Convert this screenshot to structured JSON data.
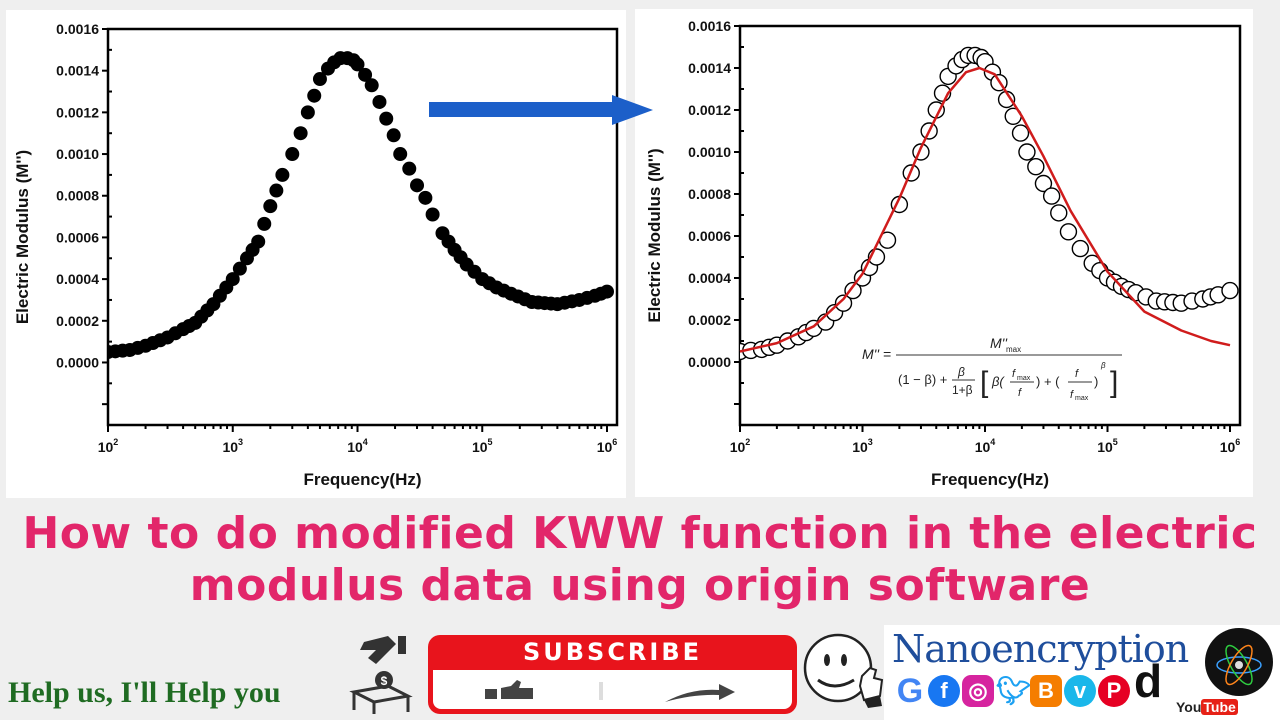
{
  "title": {
    "line1": "How to do modified KWW function in the electric",
    "line2": "modulus data using origin software"
  },
  "footer": {
    "help_text": "Help us, I'll Help you",
    "subscribe_label": "SUBSCRIBE",
    "brand_name": "Nanoencryption",
    "youtube_you": "You",
    "youtube_tube": "Tube",
    "social_icons": [
      "google-icon",
      "facebook-icon",
      "instagram-icon",
      "twitter-icon",
      "blogger-icon",
      "vimeo-icon",
      "pinterest-icon",
      "dailymotion-icon"
    ]
  },
  "colors": {
    "title": "#e2266a",
    "help_text": "#1f6b22",
    "arrow": "#1c5fc9",
    "fit_line": "#d01c1c",
    "subscribe_red": "#e8141c",
    "brand_blue": "#1f4e9c"
  },
  "formula": {
    "text": "M'' = M''max / ((1-β) + β/(1+β) [ β (fmax/f) + (f/fmax)^β ])"
  },
  "chart_data": [
    {
      "type": "scatter",
      "title": "",
      "xlabel": "Frequency(Hz)",
      "ylabel": "Electric Modulus (M'')",
      "xscale": "log",
      "xlim": [
        100,
        1200000
      ],
      "ylim": [
        -0.0003,
        0.0016
      ],
      "x_ticks": [
        "10^2",
        "10^3",
        "10^4",
        "10^5",
        "10^6"
      ],
      "y_ticks": [
        "0.0000",
        "0.0002",
        "0.0004",
        "0.0006",
        "0.0008",
        "0.0010",
        "0.0012",
        "0.0014",
        "0.0016"
      ],
      "grid": false,
      "legend": null,
      "series": [
        {
          "name": "M'' data (filled circles)",
          "marker": "filled-circle",
          "x": [
            100,
            150,
            200,
            300,
            400,
            500,
            700,
            1000,
            1300,
            1600,
            2000,
            2500,
            3000,
            3500,
            4000,
            4500,
            5000,
            5800,
            6500,
            7300,
            8300,
            9300,
            10000,
            11500,
            13000,
            15000,
            17000,
            19500,
            22000,
            26000,
            30000,
            35000,
            40000,
            48000,
            60000,
            75000,
            100000,
            130000,
            170000,
            250000,
            400000,
            600000,
            800000,
            1000000
          ],
          "y": [
            5e-05,
            6e-05,
            8e-05,
            0.00012,
            0.00016,
            0.00019,
            0.00028,
            0.0004,
            0.0005,
            0.00058,
            0.00075,
            0.0009,
            0.001,
            0.0011,
            0.0012,
            0.00128,
            0.00136,
            0.00141,
            0.00144,
            0.00146,
            0.00146,
            0.00145,
            0.00143,
            0.00138,
            0.00133,
            0.00125,
            0.00117,
            0.00109,
            0.001,
            0.00093,
            0.00085,
            0.00079,
            0.00071,
            0.00062,
            0.00054,
            0.00047,
            0.0004,
            0.00036,
            0.00033,
            0.00029,
            0.00028,
            0.0003,
            0.00032,
            0.00034
          ]
        }
      ]
    },
    {
      "type": "scatter",
      "title": "",
      "xlabel": "Frequency(Hz)",
      "ylabel": "Electric Modulus (M'')",
      "xscale": "log",
      "xlim": [
        100,
        1200000
      ],
      "ylim": [
        -0.0003,
        0.0016
      ],
      "x_ticks": [
        "10^2",
        "10^3",
        "10^4",
        "10^5",
        "10^6"
      ],
      "y_ticks": [
        "0.0000",
        "0.0002",
        "0.0004",
        "0.0006",
        "0.0008",
        "0.0010",
        "0.0012",
        "0.0014",
        "0.0016"
      ],
      "grid": false,
      "annotation": "M'' = M''max / ((1-β) + β/(1+β) [ β (fmax/f) + (f/fmax)^β ])",
      "series": [
        {
          "name": "M'' data (open circles)",
          "marker": "open-circle",
          "x": [
            100,
            150,
            200,
            300,
            400,
            500,
            700,
            1000,
            1300,
            1600,
            2000,
            2500,
            3000,
            3500,
            4000,
            4500,
            5000,
            5800,
            6500,
            7300,
            8300,
            9300,
            10000,
            11500,
            13000,
            15000,
            17000,
            19500,
            22000,
            26000,
            30000,
            35000,
            40000,
            48000,
            60000,
            75000,
            100000,
            130000,
            170000,
            250000,
            400000,
            600000,
            800000,
            1000000
          ],
          "y": [
            5e-05,
            6e-05,
            8e-05,
            0.00012,
            0.00016,
            0.00019,
            0.00028,
            0.0004,
            0.0005,
            0.00058,
            0.00075,
            0.0009,
            0.001,
            0.0011,
            0.0012,
            0.00128,
            0.00136,
            0.00141,
            0.00144,
            0.00146,
            0.00146,
            0.00145,
            0.00143,
            0.00138,
            0.00133,
            0.00125,
            0.00117,
            0.00109,
            0.001,
            0.00093,
            0.00085,
            0.00079,
            0.00071,
            0.00062,
            0.00054,
            0.00047,
            0.0004,
            0.00036,
            0.00033,
            0.00029,
            0.00028,
            0.0003,
            0.00032,
            0.00034
          ]
        },
        {
          "name": "modified KWW fit",
          "line": "solid",
          "color": "#d01c1c",
          "x": [
            100,
            200,
            400,
            700,
            1000,
            2000,
            3000,
            5000,
            7000,
            9000,
            12000,
            20000,
            30000,
            50000,
            100000,
            200000,
            400000,
            700000,
            1000000
          ],
          "y": [
            5e-05,
            9e-05,
            0.00017,
            0.0003,
            0.00042,
            0.00078,
            0.00102,
            0.00128,
            0.00138,
            0.0014,
            0.00137,
            0.00117,
            0.00098,
            0.00072,
            0.00043,
            0.00024,
            0.00015,
            0.0001,
            8e-05
          ]
        }
      ]
    }
  ]
}
